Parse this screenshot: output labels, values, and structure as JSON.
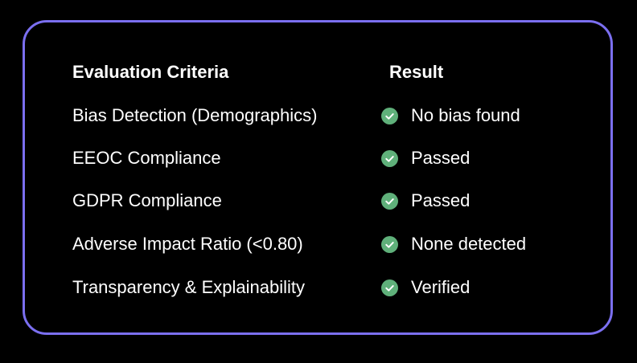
{
  "header": {
    "criteria": "Evaluation Criteria",
    "result": "Result"
  },
  "rows": [
    {
      "criteria": "Bias Detection (Demographics)",
      "result": "No bias found",
      "icon": "check-circle-icon"
    },
    {
      "criteria": "EEOC Compliance",
      "result": "Passed",
      "icon": "check-circle-icon"
    },
    {
      "criteria": "GDPR Compliance",
      "result": "Passed",
      "icon": "check-circle-icon"
    },
    {
      "criteria": "Adverse Impact Ratio (<0.80)",
      "result": "None detected",
      "icon": "check-circle-icon"
    },
    {
      "criteria": "Transparency & Explainability",
      "result": "Verified",
      "icon": "check-circle-icon"
    }
  ],
  "colors": {
    "border": "#7b6ff0",
    "check": "#5fb07a",
    "background": "#000000",
    "text": "#ffffff"
  }
}
